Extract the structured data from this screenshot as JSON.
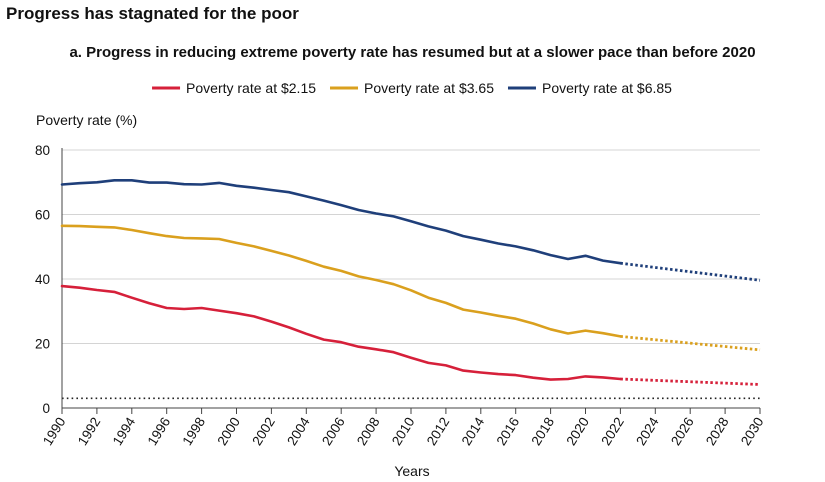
{
  "title": "Progress has stagnated for the poor",
  "chart_data": {
    "type": "line",
    "subtitle": "a. Progress in reducing extreme poverty rate has resumed but at a slower pace than before 2020",
    "ylabel": "Poverty rate (%)",
    "xlabel": "Years",
    "xlim": [
      1990,
      2030
    ],
    "ylim": [
      0,
      80
    ],
    "yticks": [
      0,
      20,
      40,
      60,
      80
    ],
    "xticks": [
      1990,
      1992,
      1994,
      1996,
      1998,
      2000,
      2002,
      2004,
      2006,
      2008,
      2010,
      2012,
      2014,
      2016,
      2018,
      2020,
      2022,
      2024,
      2026,
      2028,
      2030
    ],
    "grid": true,
    "legend_position": "top",
    "reference_line": {
      "y": 3,
      "style": "dotted"
    },
    "series": [
      {
        "name": "Poverty rate at $2.15",
        "color": "#d6203a",
        "x": [
          1990,
          1991,
          1992,
          1993,
          1994,
          1995,
          1996,
          1997,
          1998,
          1999,
          2000,
          2001,
          2002,
          2003,
          2004,
          2005,
          2006,
          2007,
          2008,
          2009,
          2010,
          2011,
          2012,
          2013,
          2014,
          2015,
          2016,
          2017,
          2018,
          2019,
          2020,
          2021,
          2022
        ],
        "values": [
          37.8,
          37.3,
          36.6,
          36.0,
          34.2,
          32.5,
          31.0,
          30.7,
          31.0,
          30.2,
          29.4,
          28.4,
          26.8,
          25.0,
          23.0,
          21.2,
          20.4,
          19.0,
          18.2,
          17.3,
          15.6,
          14.0,
          13.2,
          11.6,
          11.0,
          10.5,
          10.2,
          9.4,
          8.8,
          9.0,
          9.8,
          9.5,
          9.0
        ],
        "projection": {
          "x": [
            2022,
            2030
          ],
          "values": [
            9.0,
            7.3
          ]
        }
      },
      {
        "name": "Poverty rate at $3.65",
        "color": "#daa01e",
        "x": [
          1990,
          1991,
          1992,
          1993,
          1994,
          1995,
          1996,
          1997,
          1998,
          1999,
          2000,
          2001,
          2002,
          2003,
          2004,
          2005,
          2006,
          2007,
          2008,
          2009,
          2010,
          2011,
          2012,
          2013,
          2014,
          2015,
          2016,
          2017,
          2018,
          2019,
          2020,
          2021,
          2022
        ],
        "values": [
          56.5,
          56.4,
          56.2,
          56.0,
          55.2,
          54.2,
          53.3,
          52.7,
          52.6,
          52.4,
          51.2,
          50.1,
          48.7,
          47.3,
          45.6,
          43.8,
          42.5,
          40.8,
          39.7,
          38.4,
          36.5,
          34.2,
          32.6,
          30.5,
          29.6,
          28.6,
          27.7,
          26.2,
          24.4,
          23.1,
          24.0,
          23.2,
          22.2
        ],
        "projection": {
          "x": [
            2022,
            2030
          ],
          "values": [
            22.2,
            18.0
          ]
        }
      },
      {
        "name": "Poverty rate at $6.85",
        "color": "#1f3f7a",
        "x": [
          1990,
          1991,
          1992,
          1993,
          1994,
          1995,
          1996,
          1997,
          1998,
          1999,
          2000,
          2001,
          2002,
          2003,
          2004,
          2005,
          2006,
          2007,
          2008,
          2009,
          2010,
          2011,
          2012,
          2013,
          2014,
          2015,
          2016,
          2017,
          2018,
          2019,
          2020,
          2021,
          2022
        ],
        "values": [
          69.3,
          69.7,
          70.0,
          70.6,
          70.6,
          69.9,
          69.9,
          69.4,
          69.3,
          69.8,
          68.9,
          68.3,
          67.6,
          66.9,
          65.6,
          64.3,
          62.9,
          61.4,
          60.3,
          59.4,
          57.9,
          56.3,
          55.0,
          53.3,
          52.2,
          51.0,
          50.1,
          48.9,
          47.4,
          46.2,
          47.2,
          45.7,
          44.9
        ],
        "projection": {
          "x": [
            2022,
            2030
          ],
          "values": [
            44.9,
            39.6
          ]
        }
      }
    ]
  }
}
